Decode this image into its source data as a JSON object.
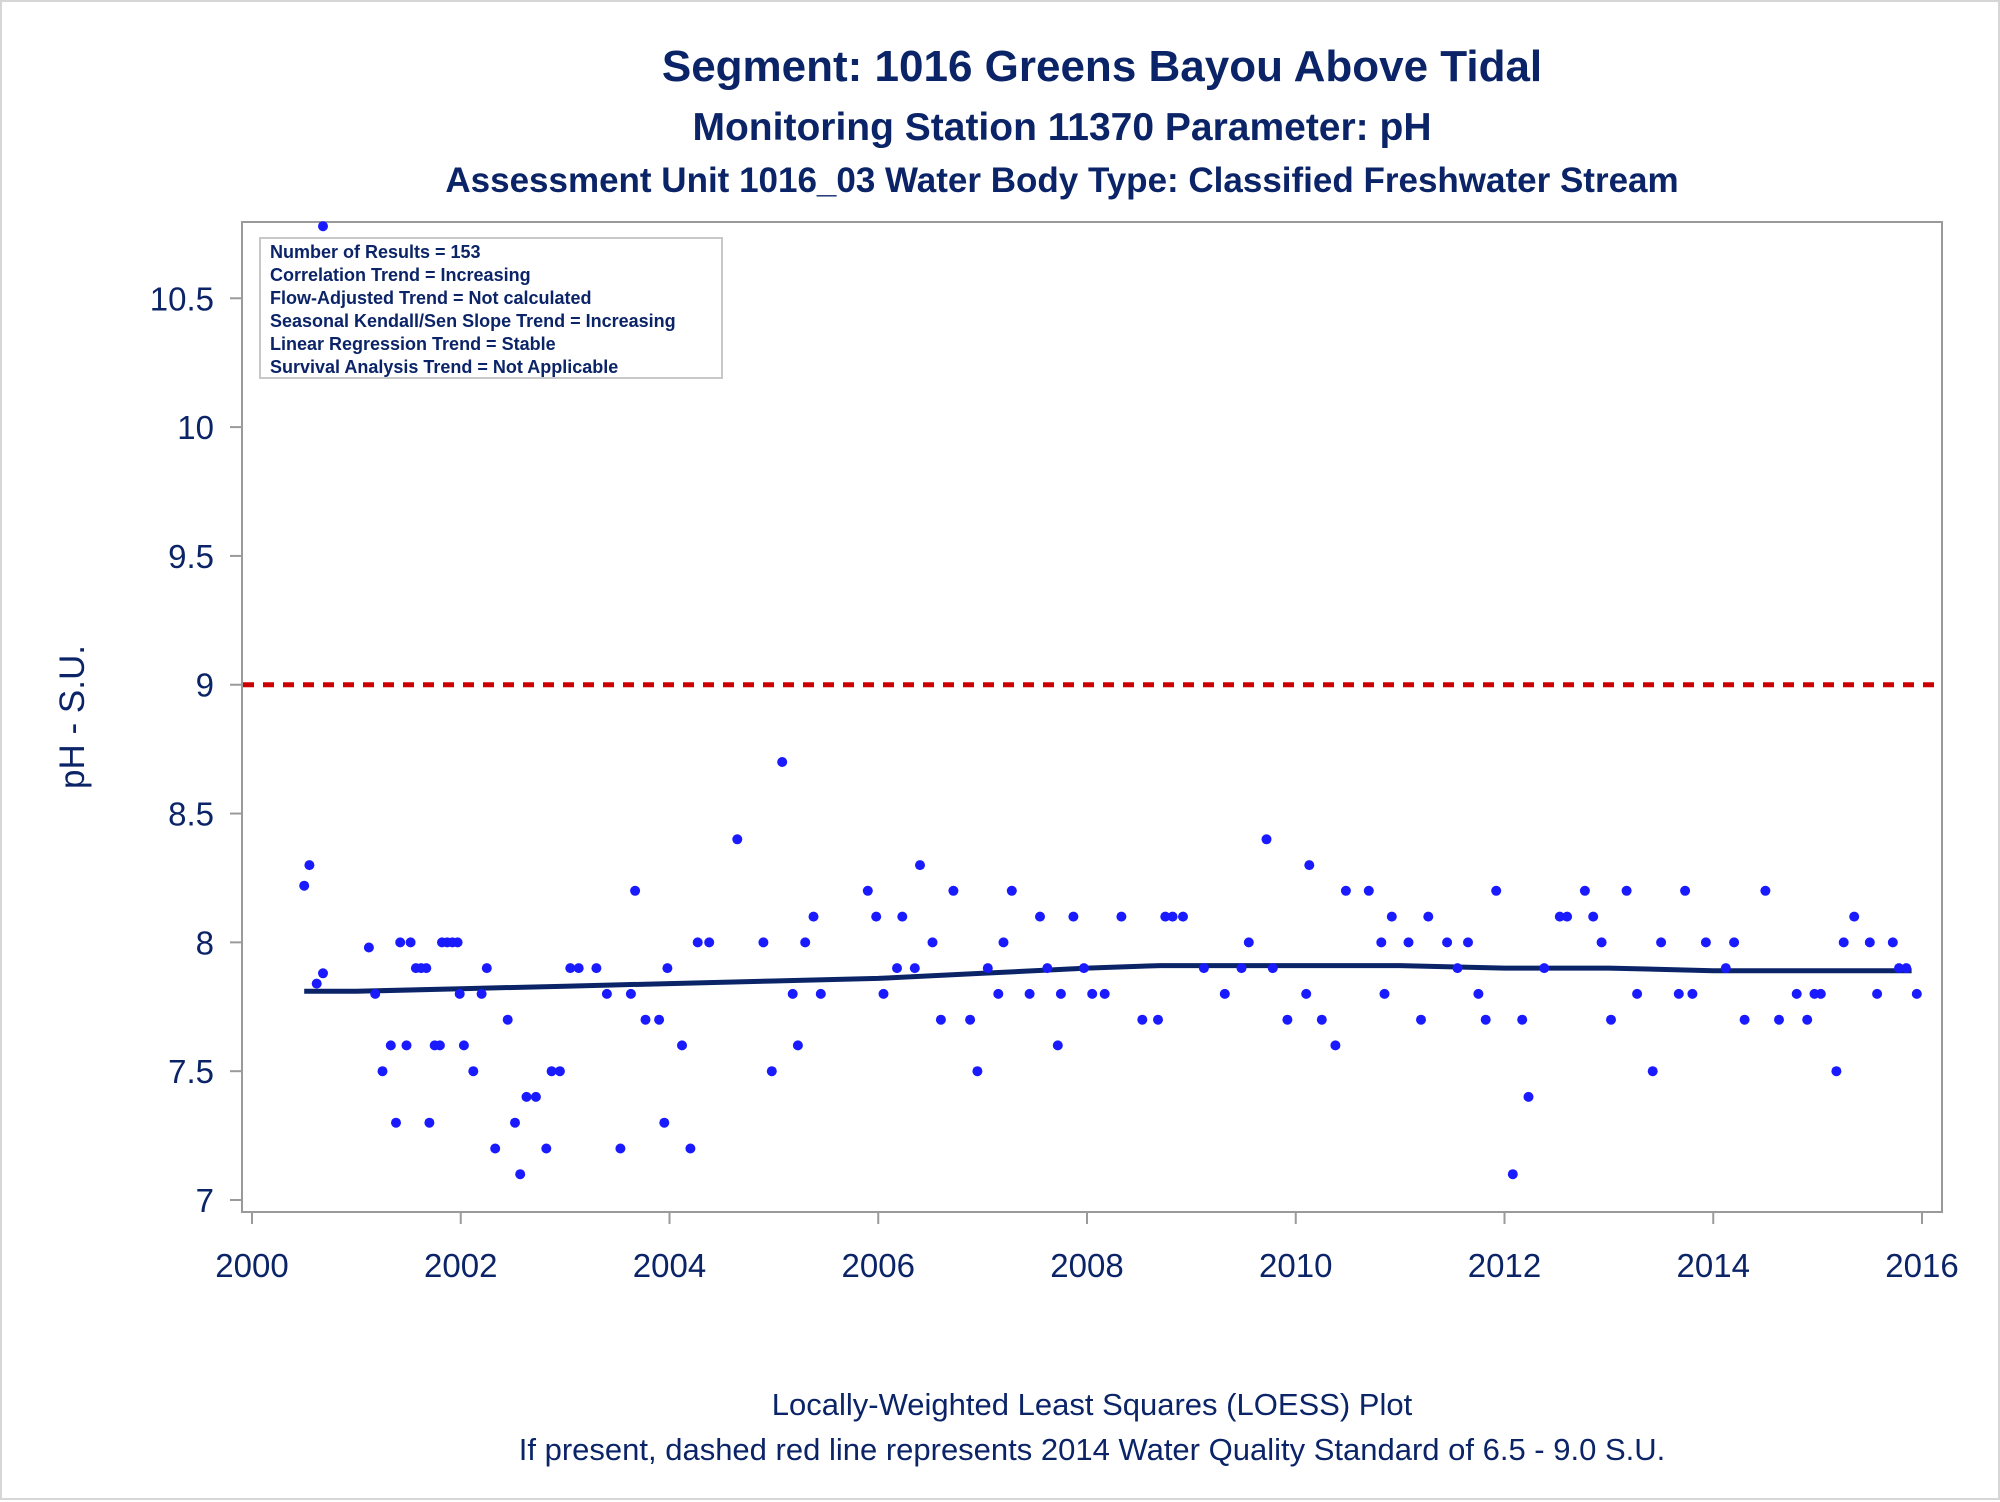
{
  "titles": {
    "line1": "Segment: 1016  Greens Bayou Above Tidal",
    "line2": "Monitoring Station 11370 Parameter: pH",
    "line3": "Assessment Unit 1016_03   Water Body Type: Classified Freshwater Stream"
  },
  "footnotes": {
    "line1": "Locally-Weighted Least Squares (LOESS) Plot",
    "line2": "If present, dashed red line represents 2014 Water Quality Standard of 6.5 - 9.0 S.U."
  },
  "stats_box": {
    "lines": [
      "Number of Results = 153",
      "Correlation Trend = Increasing",
      "Flow-Adjusted Trend = Not calculated",
      "Seasonal Kendall/Sen Slope Trend = Increasing",
      "Linear Regression Trend = Stable",
      "Survival Analysis Trend = Not Applicable"
    ]
  },
  "colors": {
    "text": "#0b2468",
    "points": "#1a1aff",
    "loess": "#0b2468",
    "standard_line": "#cc0000",
    "frame": "#9a9a9a"
  },
  "chart_data": {
    "type": "scatter",
    "ylabel": "pH - S.U.",
    "xlabel": "",
    "xlim": [
      2000,
      2016
    ],
    "ylim": [
      7,
      10.8
    ],
    "x_ticks": [
      "2000",
      "2002",
      "2004",
      "2006",
      "2008",
      "2010",
      "2012",
      "2014",
      "2016"
    ],
    "y_ticks": [
      "7",
      "7.5",
      "8",
      "8.5",
      "9",
      "9.5",
      "10",
      "10.5"
    ],
    "y_tick_values": [
      7,
      7.5,
      8,
      8.5,
      9,
      9.5,
      10,
      10.5
    ],
    "x_tick_values": [
      2000,
      2002,
      2004,
      2006,
      2008,
      2010,
      2012,
      2014,
      2016
    ],
    "standard_line": {
      "y": 9.0,
      "style": "dashed"
    },
    "grid": false,
    "legend_position": "top-left",
    "points": [
      [
        2000.5,
        8.22
      ],
      [
        2000.55,
        8.3
      ],
      [
        2000.62,
        7.84
      ],
      [
        2000.68,
        7.88
      ],
      [
        2000.68,
        10.78
      ],
      [
        2001.12,
        7.98
      ],
      [
        2001.18,
        7.8
      ],
      [
        2001.25,
        7.5
      ],
      [
        2001.33,
        7.6
      ],
      [
        2001.38,
        7.3
      ],
      [
        2001.42,
        8.0
      ],
      [
        2001.48,
        7.6
      ],
      [
        2001.52,
        8.0
      ],
      [
        2001.57,
        7.9
      ],
      [
        2001.62,
        7.9
      ],
      [
        2001.67,
        7.9
      ],
      [
        2001.7,
        7.3
      ],
      [
        2001.75,
        7.6
      ],
      [
        2001.8,
        7.6
      ],
      [
        2001.82,
        8.0
      ],
      [
        2001.87,
        8.0
      ],
      [
        2001.92,
        8.0
      ],
      [
        2001.97,
        8.0
      ],
      [
        2001.99,
        7.8
      ],
      [
        2002.03,
        7.6
      ],
      [
        2002.12,
        7.5
      ],
      [
        2002.2,
        7.8
      ],
      [
        2002.25,
        7.9
      ],
      [
        2002.33,
        7.2
      ],
      [
        2002.45,
        7.7
      ],
      [
        2002.52,
        7.3
      ],
      [
        2002.57,
        7.1
      ],
      [
        2002.63,
        7.4
      ],
      [
        2002.72,
        7.4
      ],
      [
        2002.82,
        7.2
      ],
      [
        2002.87,
        7.5
      ],
      [
        2002.95,
        7.5
      ],
      [
        2003.05,
        7.9
      ],
      [
        2003.13,
        7.9
      ],
      [
        2003.3,
        7.9
      ],
      [
        2003.4,
        7.8
      ],
      [
        2003.53,
        7.2
      ],
      [
        2003.63,
        7.8
      ],
      [
        2003.67,
        8.2
      ],
      [
        2003.77,
        7.7
      ],
      [
        2003.9,
        7.7
      ],
      [
        2003.95,
        7.3
      ],
      [
        2003.98,
        7.9
      ],
      [
        2004.12,
        7.6
      ],
      [
        2004.2,
        7.2
      ],
      [
        2004.27,
        8.0
      ],
      [
        2004.38,
        8.0
      ],
      [
        2004.65,
        8.4
      ],
      [
        2004.9,
        8.0
      ],
      [
        2004.98,
        7.5
      ],
      [
        2005.08,
        8.7
      ],
      [
        2005.18,
        7.8
      ],
      [
        2005.23,
        7.6
      ],
      [
        2005.3,
        8.0
      ],
      [
        2005.38,
        8.1
      ],
      [
        2005.45,
        7.8
      ],
      [
        2005.9,
        8.2
      ],
      [
        2005.98,
        8.1
      ],
      [
        2006.05,
        7.8
      ],
      [
        2006.18,
        7.9
      ],
      [
        2006.23,
        8.1
      ],
      [
        2006.35,
        7.9
      ],
      [
        2006.4,
        8.3
      ],
      [
        2006.52,
        8.0
      ],
      [
        2006.6,
        7.7
      ],
      [
        2006.72,
        8.2
      ],
      [
        2006.88,
        7.7
      ],
      [
        2006.95,
        7.5
      ],
      [
        2007.05,
        7.9
      ],
      [
        2007.15,
        7.8
      ],
      [
        2007.2,
        8.0
      ],
      [
        2007.28,
        8.2
      ],
      [
        2007.45,
        7.8
      ],
      [
        2007.55,
        8.1
      ],
      [
        2007.62,
        7.9
      ],
      [
        2007.72,
        7.6
      ],
      [
        2007.75,
        7.8
      ],
      [
        2007.87,
        8.1
      ],
      [
        2007.97,
        7.9
      ],
      [
        2008.05,
        7.8
      ],
      [
        2008.17,
        7.8
      ],
      [
        2008.33,
        8.1
      ],
      [
        2008.53,
        7.7
      ],
      [
        2008.68,
        7.7
      ],
      [
        2008.75,
        8.1
      ],
      [
        2008.82,
        8.1
      ],
      [
        2008.92,
        8.1
      ],
      [
        2009.12,
        7.9
      ],
      [
        2009.32,
        7.8
      ],
      [
        2009.48,
        7.9
      ],
      [
        2009.55,
        8.0
      ],
      [
        2009.72,
        8.4
      ],
      [
        2009.78,
        7.9
      ],
      [
        2009.92,
        7.7
      ],
      [
        2010.1,
        7.8
      ],
      [
        2010.13,
        8.3
      ],
      [
        2010.25,
        7.7
      ],
      [
        2010.38,
        7.6
      ],
      [
        2010.48,
        8.2
      ],
      [
        2010.7,
        8.2
      ],
      [
        2010.82,
        8.0
      ],
      [
        2010.85,
        7.8
      ],
      [
        2010.92,
        8.1
      ],
      [
        2011.08,
        8.0
      ],
      [
        2011.2,
        7.7
      ],
      [
        2011.27,
        8.1
      ],
      [
        2011.45,
        8.0
      ],
      [
        2011.55,
        7.9
      ],
      [
        2011.65,
        8.0
      ],
      [
        2011.75,
        7.8
      ],
      [
        2011.82,
        7.7
      ],
      [
        2011.92,
        8.2
      ],
      [
        2012.08,
        7.1
      ],
      [
        2012.17,
        7.7
      ],
      [
        2012.23,
        7.4
      ],
      [
        2012.38,
        7.9
      ],
      [
        2012.53,
        8.1
      ],
      [
        2012.6,
        8.1
      ],
      [
        2012.77,
        8.2
      ],
      [
        2012.85,
        8.1
      ],
      [
        2012.93,
        8.0
      ],
      [
        2013.02,
        7.7
      ],
      [
        2013.17,
        8.2
      ],
      [
        2013.27,
        7.8
      ],
      [
        2013.42,
        7.5
      ],
      [
        2013.5,
        8.0
      ],
      [
        2013.67,
        7.8
      ],
      [
        2013.73,
        8.2
      ],
      [
        2013.8,
        7.8
      ],
      [
        2013.93,
        8.0
      ],
      [
        2014.12,
        7.9
      ],
      [
        2014.2,
        8.0
      ],
      [
        2014.3,
        7.7
      ],
      [
        2014.5,
        8.2
      ],
      [
        2014.63,
        7.7
      ],
      [
        2014.8,
        7.8
      ],
      [
        2014.9,
        7.7
      ],
      [
        2014.97,
        7.8
      ],
      [
        2015.03,
        7.8
      ],
      [
        2015.18,
        7.5
      ],
      [
        2015.25,
        8.0
      ],
      [
        2015.35,
        8.1
      ],
      [
        2015.5,
        8.0
      ],
      [
        2015.57,
        7.8
      ],
      [
        2015.72,
        8.0
      ],
      [
        2015.78,
        7.9
      ],
      [
        2015.85,
        7.9
      ],
      [
        2015.95,
        7.8
      ]
    ],
    "loess": [
      [
        2000.5,
        7.81
      ],
      [
        2001.0,
        7.81
      ],
      [
        2002.0,
        7.82
      ],
      [
        2003.0,
        7.83
      ],
      [
        2004.0,
        7.84
      ],
      [
        2005.0,
        7.85
      ],
      [
        2006.0,
        7.86
      ],
      [
        2007.0,
        7.88
      ],
      [
        2008.0,
        7.9
      ],
      [
        2008.7,
        7.91
      ],
      [
        2009.5,
        7.91
      ],
      [
        2010.0,
        7.91
      ],
      [
        2011.0,
        7.91
      ],
      [
        2012.0,
        7.9
      ],
      [
        2013.0,
        7.9
      ],
      [
        2014.0,
        7.89
      ],
      [
        2015.0,
        7.89
      ],
      [
        2015.9,
        7.89
      ]
    ]
  }
}
